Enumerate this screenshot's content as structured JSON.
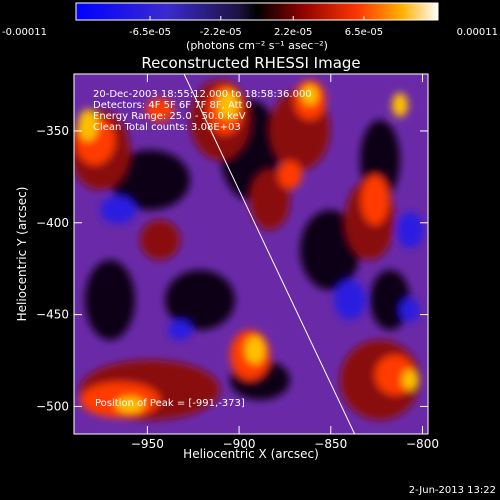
{
  "colorbar": {
    "tick_labels": [
      "-0.00011",
      "-6.5e-05",
      "-2.2e-05",
      "2.2e-05",
      "6.5e-05",
      "0.00011"
    ],
    "tick_values": [
      -0.00011,
      -6.5e-05,
      -2.2e-05,
      2.2e-05,
      6.5e-05,
      0.00011
    ],
    "range": [
      -0.00011,
      0.00011
    ],
    "units": "(photons cm⁻² s⁻¹ asec⁻²)"
  },
  "chart_data": {
    "type": "heatmap",
    "title": "Reconstructed RHESSI Image",
    "xlabel": "Heliocentric X (arcsec)",
    "ylabel": "Heliocentric Y (arcsec)",
    "xlim": [
      -990,
      -797
    ],
    "ylim": [
      -515,
      -319
    ],
    "x_ticks": [
      -950,
      -900,
      -850,
      -800
    ],
    "x_tick_labels": [
      "−950",
      "−900",
      "−850",
      "−800"
    ],
    "y_ticks": [
      -350,
      -400,
      -450,
      -500
    ],
    "y_tick_labels": [
      "−350",
      "−400",
      "−450",
      "−500"
    ],
    "info_lines": [
      "20-Dec-2003 18:55:12.000 to 18:58:36.000",
      "Detectors: 4F 5F 6F 7F 8F, Att 0",
      "Energy Range: 25.0 - 50.0 keV",
      "Clean    Total counts: 3.08E+03"
    ],
    "peak_label": "Position of Peak = [-991,-373]",
    "limb_line": [
      [
        -930,
        -319
      ],
      [
        -837,
        -515
      ]
    ]
  },
  "timestamp": "2-Jun-2013 13:22"
}
